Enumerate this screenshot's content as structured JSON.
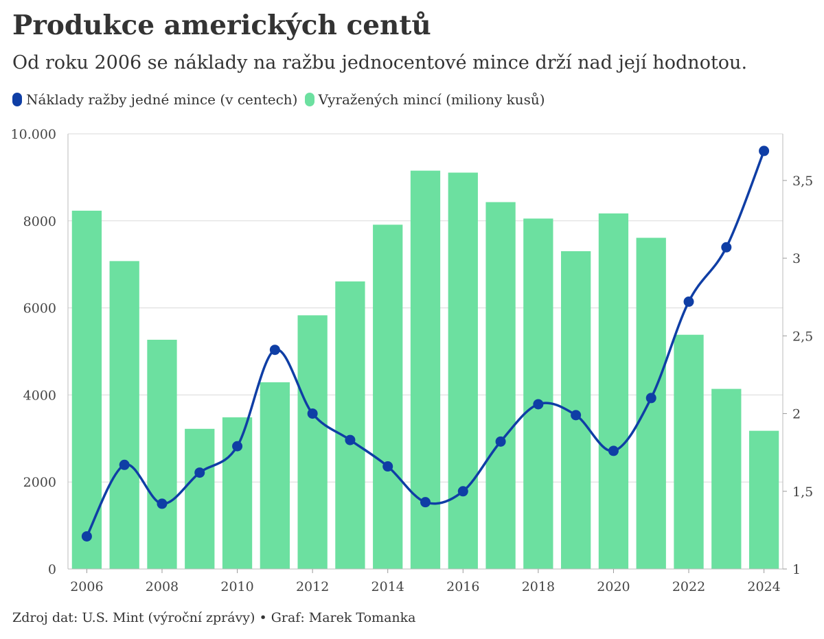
{
  "header": {
    "title": "Produkce amerických centů",
    "subtitle": "Od roku 2006 se náklady na ražbu jednocentové mince drží nad její hodnotou."
  },
  "footer": {
    "source": "Zdroj dat: U.S. Mint (výroční zprávy) • Graf: Marek Tomanka"
  },
  "colors": {
    "line": "#0f3ea5",
    "bar": "#6ce0a0",
    "grid": "#d9d9d9"
  },
  "chart_data": {
    "type": "bar",
    "x": [
      2006,
      2007,
      2008,
      2009,
      2010,
      2011,
      2012,
      2013,
      2014,
      2015,
      2016,
      2017,
      2018,
      2019,
      2020,
      2021,
      2022,
      2023,
      2024
    ],
    "series": [
      {
        "name": "Náklady ražby jedné mince (v centech)",
        "type": "line",
        "axis": "right",
        "values": [
          1.21,
          1.67,
          1.42,
          1.62,
          1.79,
          2.41,
          2.0,
          1.83,
          1.66,
          1.43,
          1.5,
          1.82,
          2.06,
          1.99,
          1.76,
          2.1,
          2.72,
          3.07,
          3.69
        ]
      },
      {
        "name": "Vyražených mincí (miliony kusů)",
        "type": "bar",
        "axis": "left",
        "values": [
          8234,
          7076,
          5268,
          3221,
          3485,
          4291,
          5830,
          6608,
          7912,
          9154,
          9109,
          8431,
          8053,
          7303,
          8171,
          7611,
          5383,
          4139,
          3176
        ]
      }
    ],
    "y_left": {
      "ylim": [
        0,
        10000
      ],
      "ticks": [
        0,
        2000,
        4000,
        6000,
        8000,
        10000
      ],
      "tick_labels": [
        "0",
        "2000",
        "4000",
        "6000",
        "8000",
        "10.000"
      ]
    },
    "y_right": {
      "ylim": [
        1,
        3.8
      ],
      "ticks": [
        1,
        1.5,
        2,
        2.5,
        3,
        3.5
      ],
      "tick_labels": [
        "1",
        "1,5",
        "2",
        "2,5",
        "3",
        "3,5"
      ]
    },
    "x_ticks": [
      2006,
      2008,
      2010,
      2012,
      2014,
      2016,
      2018,
      2020,
      2022,
      2024
    ],
    "x_tick_labels": [
      "2006",
      "2008",
      "2010",
      "2012",
      "2014",
      "2016",
      "2018",
      "2020",
      "2022",
      "2024"
    ],
    "grid": "horizontal",
    "legend": "top-left"
  }
}
